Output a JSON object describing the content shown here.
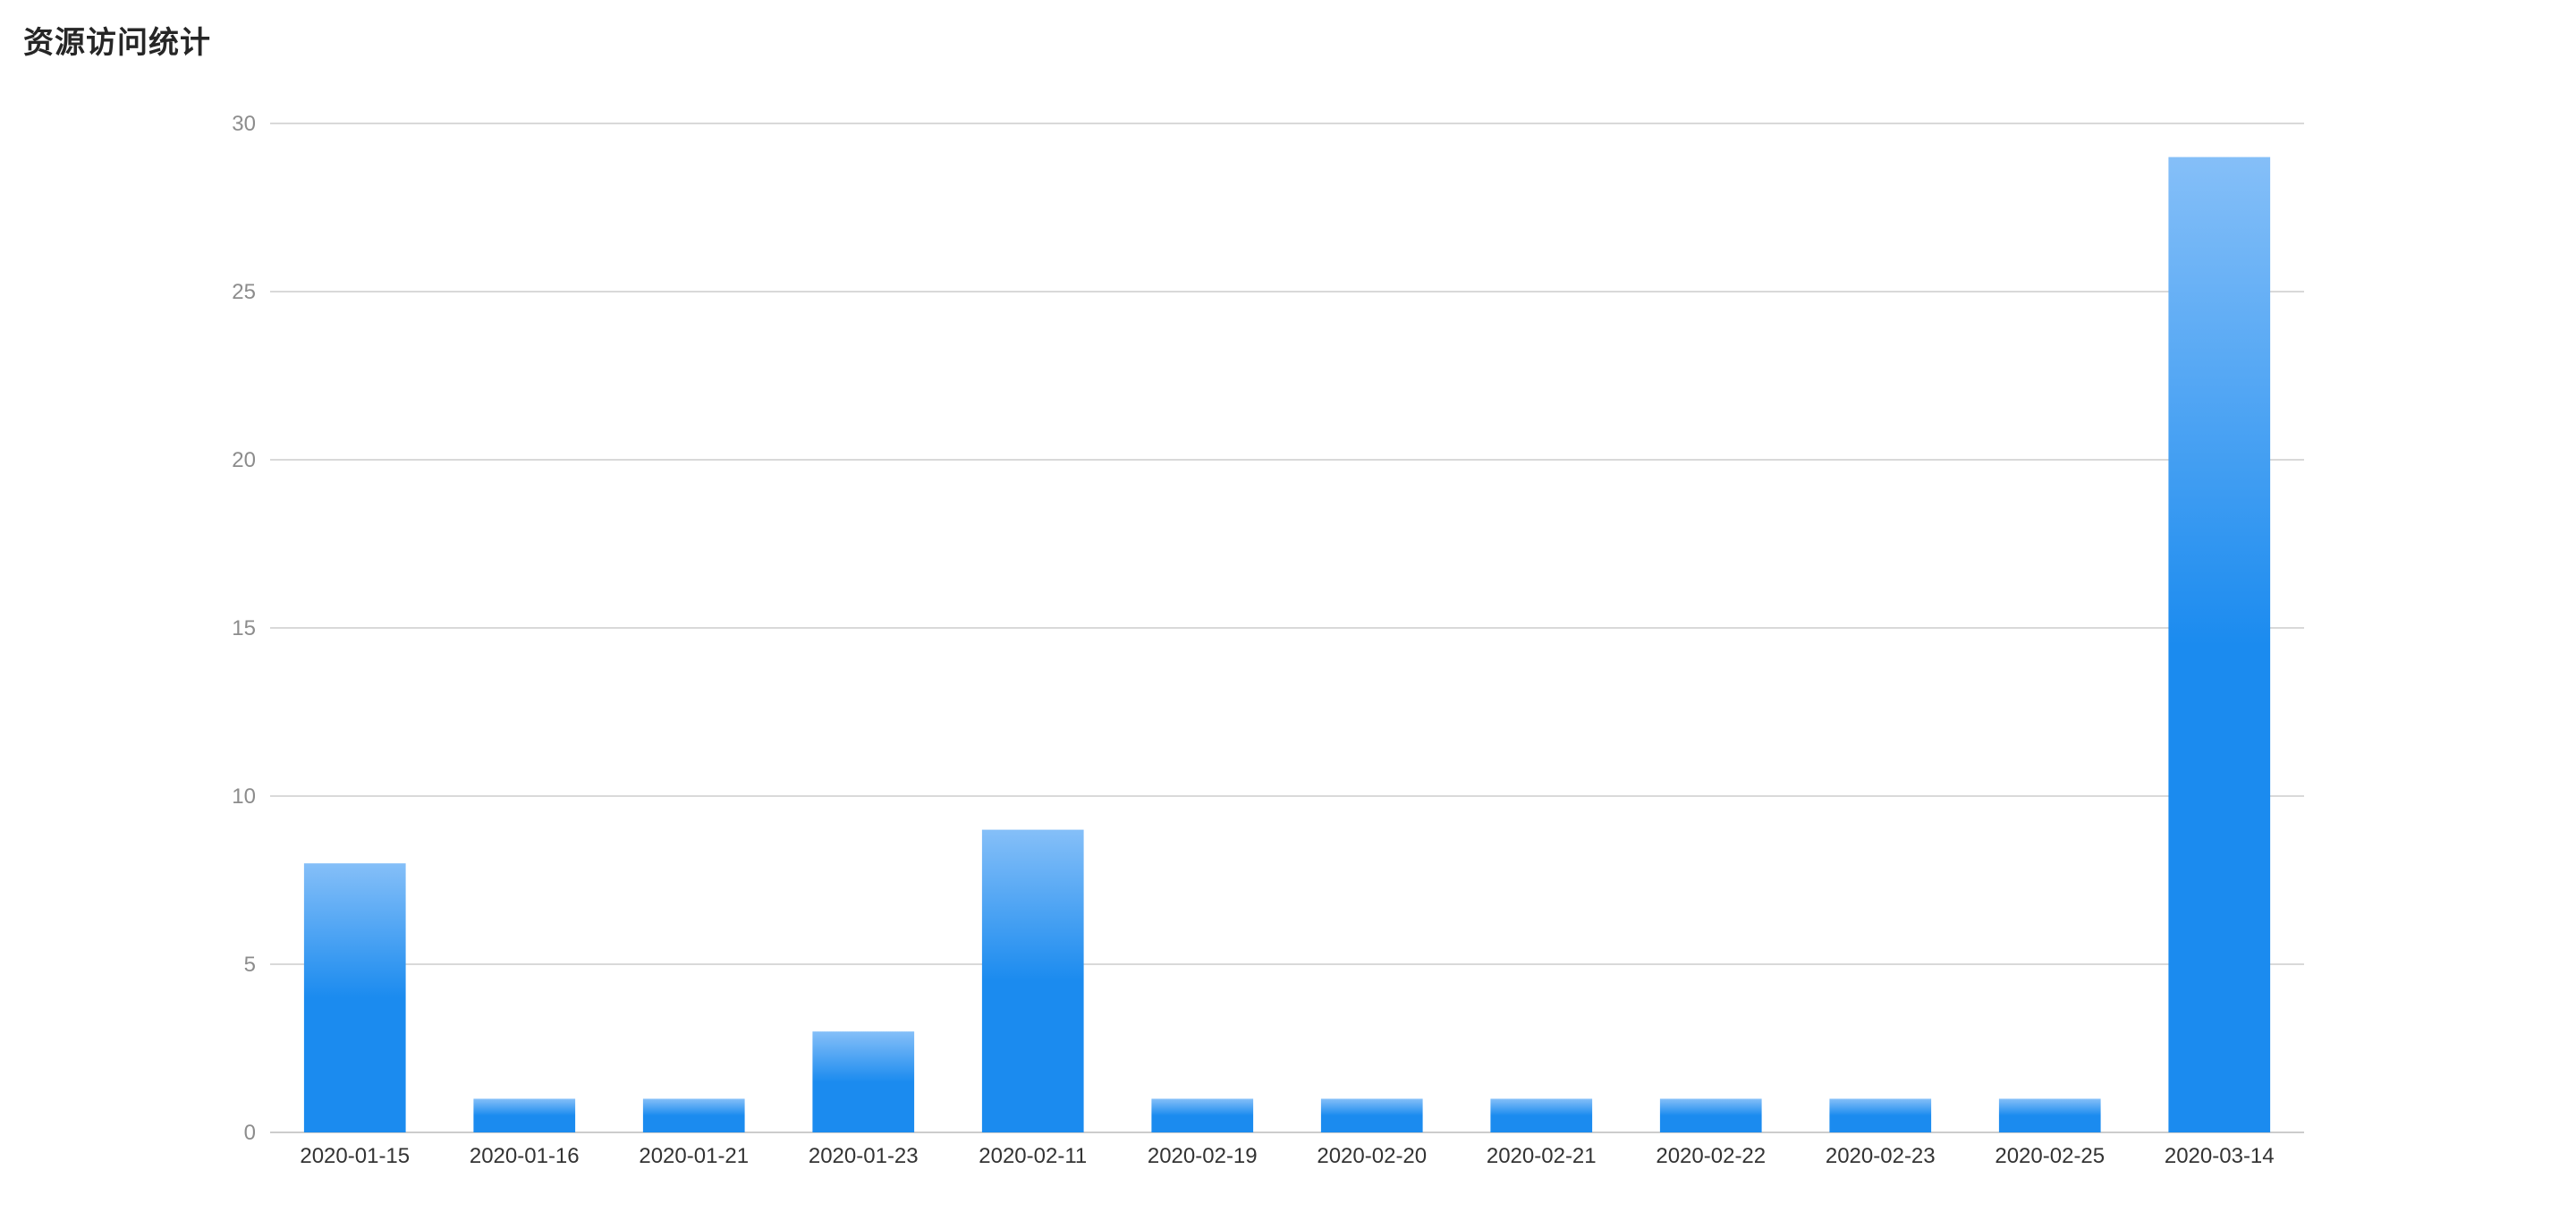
{
  "panel": {
    "title": "资源访问统计"
  },
  "chart_data": {
    "type": "bar",
    "title": "资源访问统计",
    "xlabel": "",
    "ylabel": "",
    "ylim": [
      0,
      30
    ],
    "yticks": [
      0,
      5,
      10,
      15,
      20,
      25,
      30
    ],
    "grid": true,
    "legend": "none",
    "categories": [
      "2020-01-15",
      "2020-01-16",
      "2020-01-21",
      "2020-01-23",
      "2020-02-11",
      "2020-02-19",
      "2020-02-20",
      "2020-02-21",
      "2020-02-22",
      "2020-02-23",
      "2020-02-25",
      "2020-03-14"
    ],
    "values": [
      8,
      1,
      1,
      3,
      9,
      1,
      1,
      1,
      1,
      1,
      1,
      29
    ],
    "colors": {
      "bar_top": "#85bff8",
      "bar_bottom": "#1b8bef",
      "grid": "#d9d9d9",
      "axis": "#cccccc"
    }
  }
}
